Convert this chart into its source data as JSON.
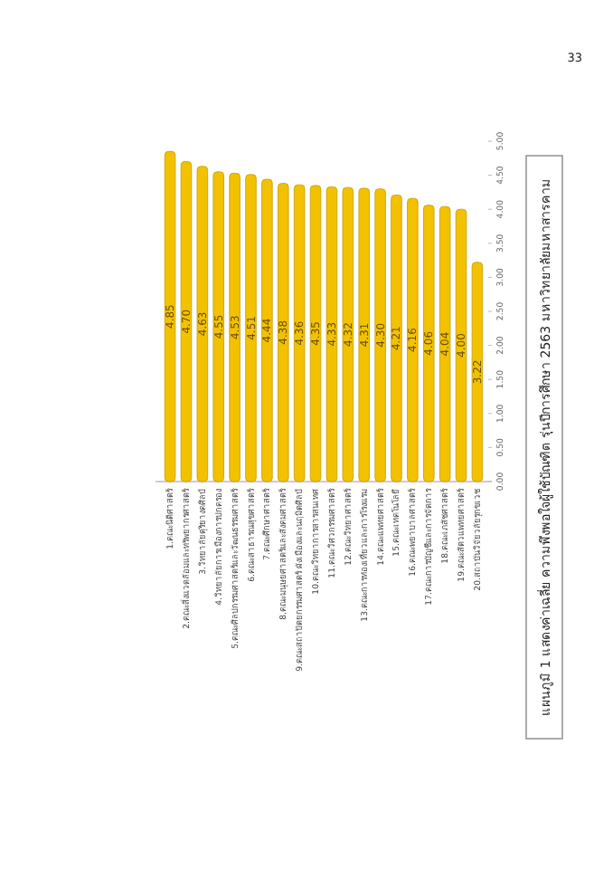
{
  "chart_data": {
    "type": "bar",
    "title": "แผนภูมิ 1 แสดงค่าเฉลี่ย ความพึงพอใจผู้ใช้บัณฑิต รุ่นปีการศึกษา 2563 มหาวิทยาลัยมหาสารคาม",
    "categories": [
      "1.คณะนิติศาสตร์",
      "2.คณะสิ่งแวดล้อมและทรัพยากรศาสตร์",
      "3.วิทยาลัยดุริยางคศิลป์",
      "4.วิทยาลัยการเมืองการปกครอง",
      "5.คณะศิลปกรรมศาสตร์และวัฒนธรรมศาสตร์",
      "6.คณะสาธารณสุขศาสตร์",
      "7.คณะศึกษาศาสตร์",
      "8.คณะมนุษยศาสตร์และสังคมศาสตร์",
      "9.คณะสถาปัตยกรรมศาสตร์ ผังเมืองและนฤมิตศิลป์",
      "10.คณะวิทยาการสารสนเทศ",
      "11.คณะวิศวกรรมศาสตร์",
      "12.คณะวิทยาศาสตร์",
      "13.คณะการท่องเที่ยวและการโรงแรม",
      "14.คณะแพทยศาสตร์",
      "15.คณะเทคโนโลยี",
      "16.คณะพยาบาลศาสตร์",
      "17.คณะการบัญชีและการจัดการ",
      "18.คณะเภสัชศาสตร์",
      "19.คณะสัตวแพทยศาสตร์",
      "20.สถาบันวิจัยวลัยรุกขเวช"
    ],
    "values": [
      4.85,
      4.7,
      4.63,
      4.55,
      4.53,
      4.51,
      4.44,
      4.38,
      4.36,
      4.35,
      4.33,
      4.32,
      4.31,
      4.3,
      4.21,
      4.16,
      4.06,
      4.04,
      4.0,
      3.22
    ],
    "value_labels": [
      "4.85",
      "4.70",
      "4.63",
      "4.55",
      "4.53",
      "4.51",
      "4.44",
      "4.38",
      "4.36",
      "4.35",
      "4.33",
      "4.32",
      "4.31",
      "4.30",
      "4.21",
      "4.16",
      "4.06",
      "4.04",
      "4.00",
      "3.22"
    ],
    "color": "#f2c200",
    "ylim": [
      0,
      5
    ],
    "yticks": [
      {
        "value": 0,
        "label": "0.00"
      },
      {
        "value": 0.5,
        "label": "0.50"
      },
      {
        "value": 1,
        "label": "1.00"
      },
      {
        "value": 1.5,
        "label": "1.50"
      },
      {
        "value": 2,
        "label": "2.00"
      },
      {
        "value": 2.5,
        "label": "2.50"
      },
      {
        "value": 3,
        "label": "3.00"
      },
      {
        "value": 3.5,
        "label": "3.50"
      },
      {
        "value": 4,
        "label": "4.00"
      },
      {
        "value": 4.5,
        "label": "4.50"
      },
      {
        "value": 5,
        "label": "5.00"
      }
    ],
    "annotations": [
      "33"
    ]
  }
}
